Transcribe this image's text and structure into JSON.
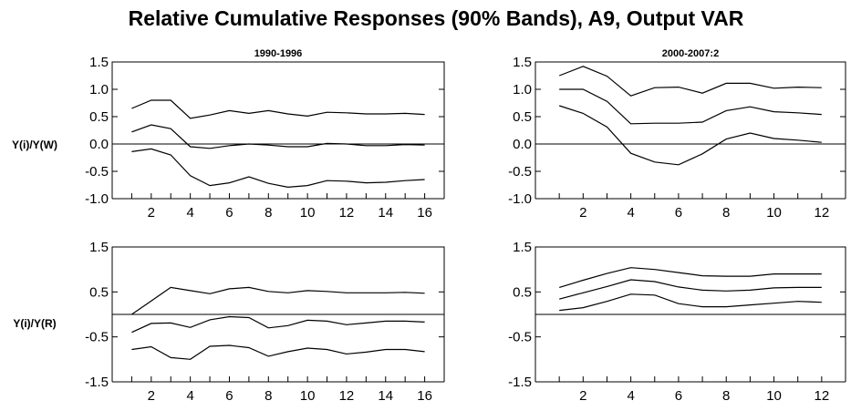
{
  "title": "Relative Cumulative Responses (90% Bands), A9, Output VAR",
  "row_labels": [
    "Y(i)/Y(W)",
    "Y(i)/Y(R)"
  ],
  "column_titles": [
    "1990-1996",
    "2000-2007:2"
  ],
  "chart_data": [
    {
      "type": "line",
      "title": "1990-1996",
      "row_label": "Y(i)/Y(W)",
      "x": [
        1,
        2,
        3,
        4,
        5,
        6,
        7,
        8,
        9,
        10,
        11,
        12,
        13,
        14,
        15,
        16
      ],
      "xlim": [
        0,
        17
      ],
      "xticks": [
        2,
        4,
        6,
        8,
        10,
        12,
        14,
        16
      ],
      "ylim": [
        -1.0,
        1.5
      ],
      "yticks": [
        -1.0,
        -0.5,
        0.0,
        0.5,
        1.0,
        1.5
      ],
      "ytick_labels": [
        "-1.0",
        "-0.5",
        "0.0",
        "0.5",
        "1.0",
        "1.5"
      ],
      "zero_line": true,
      "series": [
        {
          "values": [
            0.65,
            0.8,
            0.8,
            0.47,
            0.53,
            0.61,
            0.56,
            0.61,
            0.55,
            0.51,
            0.58,
            0.57,
            0.55,
            0.55,
            0.56,
            0.54
          ]
        },
        {
          "values": [
            0.22,
            0.35,
            0.28,
            -0.05,
            -0.08,
            -0.03,
            0.0,
            -0.02,
            -0.05,
            -0.05,
            0.01,
            0.0,
            -0.03,
            -0.03,
            -0.01,
            -0.02
          ]
        },
        {
          "values": [
            -0.14,
            -0.09,
            -0.2,
            -0.58,
            -0.76,
            -0.71,
            -0.6,
            -0.72,
            -0.79,
            -0.76,
            -0.67,
            -0.68,
            -0.71,
            -0.7,
            -0.67,
            -0.65
          ]
        }
      ]
    },
    {
      "type": "line",
      "title": "2000-2007:2",
      "row_label": "Y(i)/Y(W)",
      "x": [
        1,
        2,
        3,
        4,
        5,
        6,
        7,
        8,
        9,
        10,
        11,
        12
      ],
      "xlim": [
        0,
        13
      ],
      "xticks": [
        2,
        4,
        6,
        8,
        10,
        12
      ],
      "ylim": [
        -1.0,
        1.5
      ],
      "yticks": [
        -1.0,
        -0.5,
        0.0,
        0.5,
        1.0,
        1.5
      ],
      "ytick_labels": [
        "-1.0",
        "-0.5",
        "0.0",
        "0.5",
        "1.0",
        "1.5"
      ],
      "zero_line": true,
      "series": [
        {
          "values": [
            1.25,
            1.42,
            1.24,
            0.88,
            1.03,
            1.04,
            0.93,
            1.11,
            1.11,
            1.02,
            1.04,
            1.03
          ]
        },
        {
          "values": [
            1.0,
            1.0,
            0.78,
            0.37,
            0.38,
            0.38,
            0.4,
            0.61,
            0.68,
            0.59,
            0.57,
            0.54
          ]
        },
        {
          "values": [
            0.7,
            0.56,
            0.31,
            -0.17,
            -0.33,
            -0.38,
            -0.18,
            0.09,
            0.2,
            0.1,
            0.07,
            0.03
          ]
        }
      ]
    },
    {
      "type": "line",
      "title": "",
      "row_label": "Y(i)/Y(R)",
      "x": [
        1,
        2,
        3,
        4,
        5,
        6,
        7,
        8,
        9,
        10,
        11,
        12,
        13,
        14,
        15,
        16
      ],
      "xlim": [
        0,
        17
      ],
      "xticks": [
        2,
        4,
        6,
        8,
        10,
        12,
        14,
        16
      ],
      "ylim": [
        -1.5,
        1.5
      ],
      "yticks": [
        -1.5,
        -0.5,
        0.5,
        1.5
      ],
      "ytick_labels": [
        "-1.5",
        "-0.5",
        "0.5",
        "1.5"
      ],
      "zero_line": true,
      "series": [
        {
          "values": [
            0.0,
            0.3,
            0.6,
            0.53,
            0.46,
            0.57,
            0.6,
            0.51,
            0.48,
            0.53,
            0.51,
            0.48,
            0.48,
            0.48,
            0.49,
            0.47
          ]
        },
        {
          "values": [
            -0.4,
            -0.2,
            -0.19,
            -0.29,
            -0.12,
            -0.05,
            -0.07,
            -0.3,
            -0.25,
            -0.13,
            -0.15,
            -0.23,
            -0.19,
            -0.15,
            -0.15,
            -0.17
          ]
        },
        {
          "values": [
            -0.78,
            -0.72,
            -0.96,
            -1.0,
            -0.71,
            -0.69,
            -0.74,
            -0.93,
            -0.83,
            -0.75,
            -0.78,
            -0.88,
            -0.84,
            -0.78,
            -0.78,
            -0.83
          ]
        }
      ]
    },
    {
      "type": "line",
      "title": "",
      "row_label": "Y(i)/Y(R)",
      "x": [
        1,
        2,
        3,
        4,
        5,
        6,
        7,
        8,
        9,
        10,
        11,
        12
      ],
      "xlim": [
        0,
        13
      ],
      "xticks": [
        2,
        4,
        6,
        8,
        10,
        12
      ],
      "ylim": [
        -1.5,
        1.5
      ],
      "yticks": [
        -1.5,
        -0.5,
        0.5,
        1.5
      ],
      "ytick_labels": [
        "-1.5",
        "-0.5",
        "0.5",
        "1.5"
      ],
      "zero_line": true,
      "series": [
        {
          "values": [
            0.6,
            0.76,
            0.91,
            1.04,
            1.0,
            0.93,
            0.86,
            0.85,
            0.85,
            0.9,
            0.9,
            0.9
          ]
        },
        {
          "values": [
            0.34,
            0.48,
            0.62,
            0.77,
            0.73,
            0.61,
            0.54,
            0.52,
            0.54,
            0.59,
            0.6,
            0.6
          ]
        },
        {
          "values": [
            0.09,
            0.15,
            0.29,
            0.45,
            0.43,
            0.24,
            0.17,
            0.17,
            0.21,
            0.25,
            0.29,
            0.27
          ]
        }
      ]
    }
  ]
}
